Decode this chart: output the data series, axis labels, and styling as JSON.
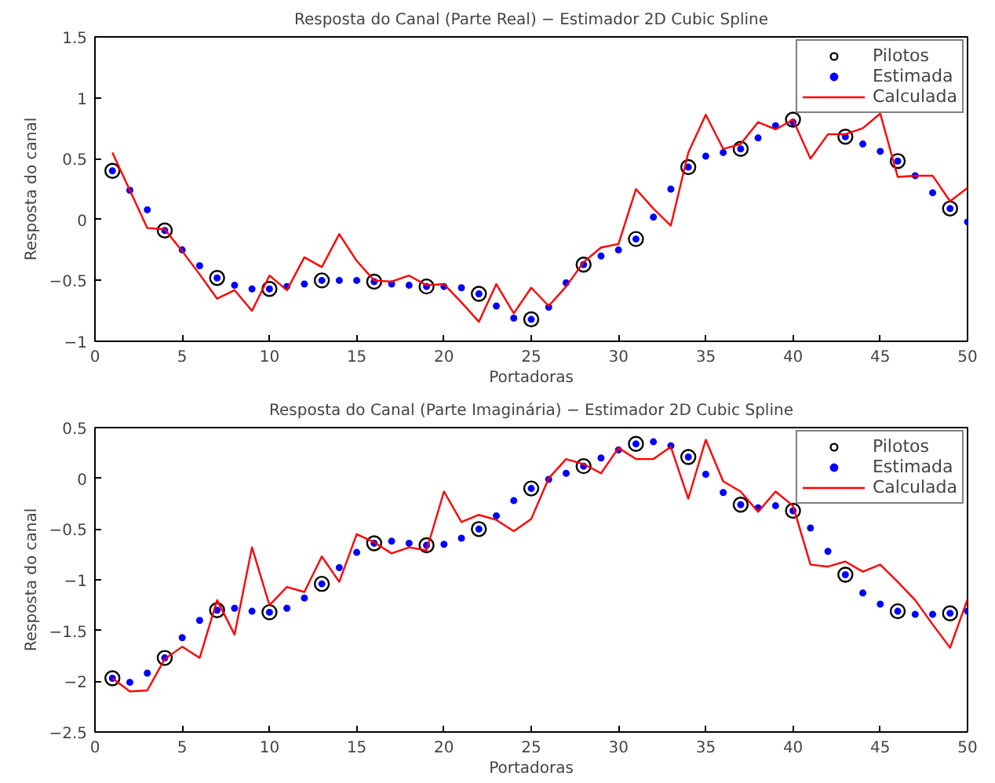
{
  "chart_data": [
    {
      "type": "line",
      "title": "Resposta do Canal (Parte Real) − Estimador 2D Cubic Spline",
      "xlabel": "Portadoras",
      "ylabel": "Resposta do canal",
      "xlim": [
        0,
        50
      ],
      "ylim": [
        -1,
        1.5
      ],
      "xticks": [
        0,
        5,
        10,
        15,
        20,
        25,
        30,
        35,
        40,
        45,
        50
      ],
      "yticks": [
        -1,
        -0.5,
        0,
        0.5,
        1,
        1.5
      ],
      "grid": false,
      "legend": "top right",
      "series": [
        {
          "name": "Pilotos",
          "type": "scatter",
          "marker": "circle",
          "color": "#000000",
          "x": [
            1,
            4,
            7,
            10,
            13,
            16,
            19,
            22,
            25,
            28,
            31,
            34,
            37,
            40,
            43,
            46,
            49
          ],
          "values": [
            0.4,
            -0.09,
            -0.48,
            -0.57,
            -0.5,
            -0.51,
            -0.55,
            -0.61,
            -0.82,
            -0.37,
            -0.16,
            0.43,
            0.58,
            0.82,
            0.68,
            0.48,
            0.09
          ]
        },
        {
          "name": "Estimada",
          "type": "scatter",
          "marker": "point",
          "color": "#0000ff",
          "x": [
            1,
            2,
            3,
            4,
            5,
            6,
            7,
            8,
            9,
            10,
            11,
            12,
            13,
            14,
            15,
            16,
            17,
            18,
            19,
            20,
            21,
            22,
            23,
            24,
            25,
            26,
            27,
            28,
            29,
            30,
            31,
            32,
            33,
            34,
            35,
            36,
            37,
            38,
            39,
            40,
            41,
            42,
            43,
            44,
            45,
            46,
            47,
            48,
            49,
            50
          ],
          "values": [
            0.4,
            0.24,
            0.08,
            -0.09,
            -0.25,
            -0.38,
            -0.48,
            -0.54,
            -0.57,
            -0.57,
            -0.55,
            -0.53,
            -0.5,
            -0.5,
            -0.5,
            -0.51,
            -0.53,
            -0.54,
            -0.55,
            -0.55,
            -0.56,
            -0.61,
            -0.71,
            -0.81,
            -0.82,
            -0.72,
            -0.52,
            -0.37,
            -0.3,
            -0.25,
            -0.16,
            0.02,
            0.25,
            0.43,
            0.52,
            0.55,
            0.58,
            0.67,
            0.77,
            0.8,
            null,
            null,
            0.68,
            0.62,
            0.56,
            0.48,
            0.36,
            0.22,
            0.09,
            -0.02
          ]
        },
        {
          "name": "Calculada",
          "color": "#ff0000",
          "x": [
            1,
            2,
            3,
            4,
            5,
            6,
            7,
            8,
            9,
            10,
            11,
            12,
            13,
            14,
            15,
            16,
            17,
            18,
            19,
            20,
            21,
            22,
            23,
            24,
            25,
            26,
            27,
            28,
            29,
            30,
            31,
            32,
            33,
            34,
            35,
            36,
            37,
            38,
            39,
            40,
            41,
            42,
            43,
            44,
            45,
            46,
            47,
            48,
            49,
            50
          ],
          "values": [
            0.55,
            0.24,
            -0.07,
            -0.08,
            -0.26,
            -0.45,
            -0.65,
            -0.58,
            -0.75,
            -0.46,
            -0.58,
            -0.31,
            -0.39,
            -0.12,
            -0.34,
            -0.5,
            -0.51,
            -0.46,
            -0.54,
            -0.53,
            -0.68,
            -0.84,
            -0.53,
            -0.77,
            -0.56,
            -0.71,
            -0.55,
            -0.35,
            -0.23,
            -0.2,
            0.25,
            0.09,
            -0.05,
            0.55,
            0.86,
            0.58,
            0.62,
            0.8,
            0.74,
            0.82,
            0.5,
            0.7,
            0.7,
            0.75,
            0.87,
            0.35,
            0.36,
            0.36,
            0.15,
            0.26
          ]
        }
      ]
    },
    {
      "type": "line",
      "title": "Resposta do Canal (Parte Imaginária) − Estimador 2D Cubic Spline",
      "xlabel": "Portadoras",
      "ylabel": "Resposta do canal",
      "xlim": [
        0,
        50
      ],
      "ylim": [
        -2.5,
        0.5
      ],
      "xticks": [
        0,
        5,
        10,
        15,
        20,
        25,
        30,
        35,
        40,
        45,
        50
      ],
      "yticks": [
        -2.5,
        -2,
        -1.5,
        -1,
        -0.5,
        0,
        0.5
      ],
      "grid": false,
      "legend": "top right",
      "series": [
        {
          "name": "Pilotos",
          "type": "scatter",
          "marker": "circle",
          "color": "#000000",
          "x": [
            1,
            4,
            7,
            10,
            13,
            16,
            19,
            22,
            25,
            28,
            31,
            34,
            37,
            40,
            43,
            46,
            49
          ],
          "values": [
            -1.97,
            -1.77,
            -1.3,
            -1.32,
            -1.04,
            -0.64,
            -0.66,
            -0.5,
            -0.1,
            0.12,
            0.34,
            0.21,
            -0.26,
            -0.32,
            -0.95,
            -1.31,
            -1.33
          ]
        },
        {
          "name": "Estimada",
          "type": "scatter",
          "marker": "point",
          "color": "#0000ff",
          "x": [
            1,
            2,
            3,
            4,
            5,
            6,
            7,
            8,
            9,
            10,
            11,
            12,
            13,
            14,
            15,
            16,
            17,
            18,
            19,
            20,
            21,
            22,
            23,
            24,
            25,
            26,
            27,
            28,
            29,
            30,
            31,
            32,
            33,
            34,
            35,
            36,
            37,
            38,
            39,
            40,
            41,
            42,
            43,
            44,
            45,
            46,
            47,
            48,
            49,
            50
          ],
          "values": [
            -1.97,
            -2.01,
            -1.92,
            -1.77,
            -1.57,
            -1.4,
            -1.3,
            -1.28,
            -1.31,
            -1.32,
            -1.28,
            -1.18,
            -1.04,
            -0.88,
            -0.73,
            -0.64,
            -0.62,
            -0.64,
            -0.66,
            -0.65,
            -0.59,
            -0.5,
            -0.37,
            -0.22,
            -0.1,
            -0.01,
            0.05,
            0.12,
            0.2,
            0.28,
            0.34,
            0.36,
            0.32,
            0.21,
            0.04,
            -0.14,
            -0.26,
            -0.29,
            -0.27,
            -0.32,
            -0.49,
            -0.72,
            -0.95,
            -1.13,
            -1.24,
            -1.31,
            -1.34,
            -1.34,
            -1.33,
            -1.31
          ]
        },
        {
          "name": "Calculada",
          "color": "#ff0000",
          "x": [
            1,
            2,
            3,
            4,
            5,
            6,
            7,
            8,
            9,
            10,
            11,
            12,
            13,
            14,
            15,
            16,
            17,
            18,
            19,
            20,
            21,
            22,
            23,
            24,
            25,
            26,
            27,
            28,
            29,
            30,
            31,
            32,
            33,
            34,
            35,
            36,
            37,
            38,
            39,
            40,
            41,
            42,
            43,
            44,
            45,
            46,
            47,
            48,
            49,
            50
          ],
          "values": [
            -1.97,
            -2.1,
            -2.09,
            -1.78,
            -1.66,
            -1.77,
            -1.2,
            -1.54,
            -0.68,
            -1.25,
            -1.07,
            -1.12,
            -0.77,
            -1.02,
            -0.55,
            -0.63,
            -0.74,
            -0.68,
            -0.71,
            -0.13,
            -0.43,
            -0.36,
            -0.41,
            -0.52,
            -0.4,
            0.0,
            0.19,
            0.14,
            0.05,
            0.3,
            0.19,
            0.19,
            0.31,
            -0.2,
            0.38,
            -0.03,
            -0.13,
            -0.33,
            -0.13,
            -0.27,
            -0.85,
            -0.87,
            -0.82,
            -0.92,
            -0.85,
            -1.02,
            -1.2,
            -1.44,
            -1.67,
            -1.19
          ]
        }
      ]
    }
  ]
}
